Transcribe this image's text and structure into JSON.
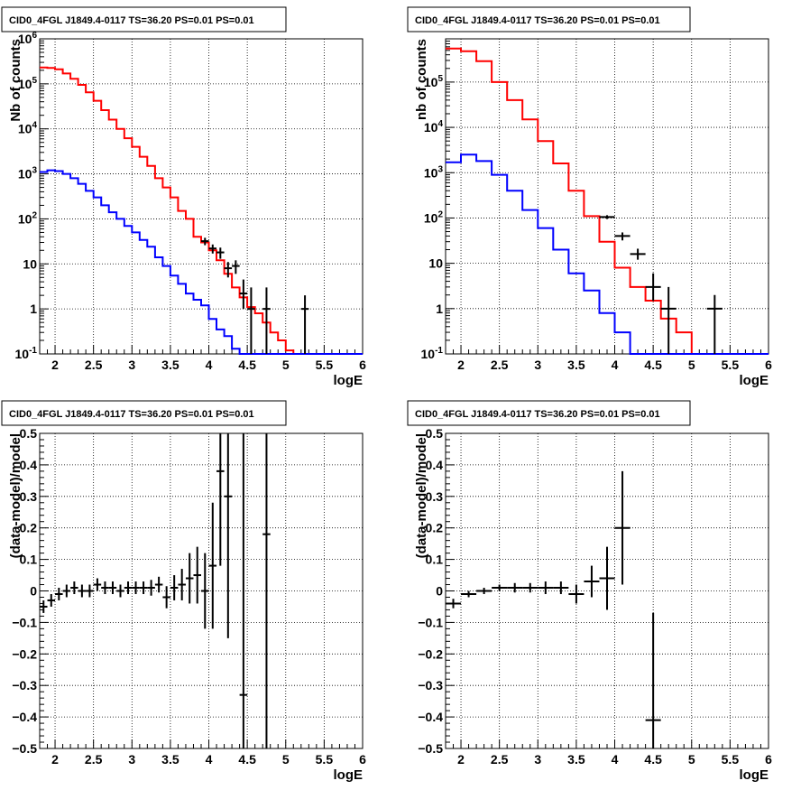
{
  "chart_data": [
    {
      "type": "step",
      "title": "CID0_4FGL J1849.4-0117 TS=36.20 PS=0.01 PS=0.01",
      "xlabel": "logE",
      "ylabel": "Nb of counts",
      "xlim": [
        1.8,
        6
      ],
      "ylim": [
        0.1,
        1000000
      ],
      "yscale": "log",
      "grid": true,
      "xticks": [
        "2",
        "2.5",
        "3",
        "3.5",
        "4",
        "4.5",
        "5",
        "5.5",
        "6"
      ],
      "yticks": [
        "10^-1",
        "1",
        "10",
        "10^2",
        "10^3",
        "10^4",
        "10^5",
        "10^6"
      ],
      "bin_edges": [
        1.8,
        1.9,
        2.0,
        2.1,
        2.2,
        2.3,
        2.4,
        2.5,
        2.6,
        2.7,
        2.8,
        2.9,
        3.0,
        3.1,
        3.2,
        3.3,
        3.4,
        3.5,
        3.6,
        3.7,
        3.8,
        3.9,
        4.0,
        4.1,
        4.2,
        4.3,
        4.4,
        4.5,
        4.6,
        4.7,
        4.8,
        4.9,
        5.0,
        5.1,
        5.2,
        5.3,
        5.4,
        5.5,
        5.6,
        5.7,
        5.8,
        5.9,
        6.0
      ],
      "series": [
        {
          "color": "#ff0000",
          "values": [
            230000,
            225000,
            210000,
            170000,
            130000,
            95000,
            65000,
            42000,
            26000,
            16000,
            10000,
            6200,
            4000,
            2400,
            1500,
            800,
            500,
            300,
            150,
            100,
            40,
            30,
            20,
            12,
            6,
            3,
            1.8,
            1.1,
            0.8,
            0.5,
            0.3,
            0.2,
            0.12,
            0.1,
            0.1,
            0.1,
            0.1,
            0.1,
            0.1,
            0.1,
            0.1,
            0.1
          ]
        },
        {
          "color": "#0000ff",
          "values": [
            1100,
            1200,
            1150,
            1000,
            800,
            600,
            420,
            300,
            200,
            140,
            100,
            70,
            50,
            34,
            24,
            14,
            9,
            5.5,
            3.6,
            2.2,
            1.6,
            1.2,
            0.6,
            0.35,
            0.25,
            0.13,
            0.1,
            0.1,
            0.1,
            0.1,
            0.1,
            0.1,
            0.1,
            0.1,
            0.1,
            0.1,
            0.1,
            0.1,
            0.1,
            0.1,
            0.1,
            0.1
          ]
        }
      ],
      "points": [
        {
          "x": 3.95,
          "y": 32,
          "xerr": 0.05,
          "ylo": 26,
          "yhi": 38
        },
        {
          "x": 4.05,
          "y": 22,
          "xerr": 0.05,
          "ylo": 17,
          "yhi": 27
        },
        {
          "x": 4.15,
          "y": 18,
          "xerr": 0.05,
          "ylo": 13,
          "yhi": 23
        },
        {
          "x": 4.25,
          "y": 8,
          "xerr": 0.05,
          "ylo": 5,
          "yhi": 11
        },
        {
          "x": 4.35,
          "y": 9,
          "xerr": 0.05,
          "ylo": 6,
          "yhi": 12
        },
        {
          "x": 4.45,
          "y": 2.2,
          "xerr": 0.05,
          "ylo": 1,
          "yhi": 4.5
        },
        {
          "x": 4.55,
          "y": 1,
          "xerr": 0.05,
          "ylo": 0.1,
          "yhi": 3
        },
        {
          "x": 4.75,
          "y": 1,
          "xerr": 0.05,
          "ylo": 0.1,
          "yhi": 3
        },
        {
          "x": 5.25,
          "y": 1,
          "xerr": 0.05,
          "ylo": 0.1,
          "yhi": 2
        }
      ]
    },
    {
      "type": "step",
      "title": "CID0_4FGL J1849.4-0117 TS=36.20 PS=0.01 PS=0.01",
      "xlabel": "logE",
      "ylabel": "nb of counts",
      "xlim": [
        1.8,
        6
      ],
      "ylim": [
        0.1,
        900000
      ],
      "yscale": "log",
      "grid": true,
      "xticks": [
        "2",
        "2.5",
        "3",
        "3.5",
        "4",
        "4.5",
        "5",
        "5.5",
        "6"
      ],
      "yticks": [
        "10^-1",
        "1",
        "10",
        "10^2",
        "10^3",
        "10^4",
        "10^5"
      ],
      "bin_edges": [
        1.8,
        2.0,
        2.2,
        2.4,
        2.6,
        2.8,
        3.0,
        3.2,
        3.4,
        3.6,
        3.8,
        4.0,
        4.2,
        4.4,
        4.6,
        4.8,
        5.0,
        5.2,
        5.4,
        5.6,
        5.8,
        6.0
      ],
      "series": [
        {
          "color": "#ff0000",
          "values": [
            550000,
            480000,
            290000,
            100000,
            40000,
            15000,
            5000,
            1600,
            400,
            110,
            30,
            8,
            3,
            1.5,
            0.6,
            0.3,
            0.1,
            0.1,
            0.1,
            0.1,
            0.1
          ]
        },
        {
          "color": "#0000ff",
          "values": [
            1700,
            2500,
            1800,
            900,
            400,
            150,
            60,
            20,
            6,
            2.5,
            0.8,
            0.3,
            0.1,
            0.1,
            0.1,
            0.1,
            0.1,
            0.1,
            0.1,
            0.1,
            0.1
          ]
        }
      ],
      "points": [
        {
          "x": 3.9,
          "y": 105,
          "xerr": 0.1,
          "ylo": 95,
          "yhi": 115
        },
        {
          "x": 4.1,
          "y": 40,
          "xerr": 0.1,
          "ylo": 32,
          "yhi": 48
        },
        {
          "x": 4.3,
          "y": 16,
          "xerr": 0.1,
          "ylo": 12,
          "yhi": 21
        },
        {
          "x": 4.5,
          "y": 3,
          "xerr": 0.1,
          "ylo": 1.5,
          "yhi": 6
        },
        {
          "x": 4.7,
          "y": 1,
          "xerr": 0.1,
          "ylo": 0.1,
          "yhi": 3
        },
        {
          "x": 5.3,
          "y": 1,
          "xerr": 0.1,
          "ylo": 0.1,
          "yhi": 2
        }
      ]
    },
    {
      "type": "scatter",
      "title": "CID0_4FGL J1849.4-0117 TS=36.20 PS=0.01 PS=0.01",
      "xlabel": "logE",
      "ylabel": "(data-model)/model",
      "xlim": [
        1.8,
        6
      ],
      "ylim": [
        -0.5,
        0.5
      ],
      "yscale": "linear",
      "grid": true,
      "xticks": [
        "2",
        "2.5",
        "3",
        "3.5",
        "4",
        "4.5",
        "5",
        "5.5",
        "6"
      ],
      "yticks": [
        "−0.5",
        "−0.4",
        "−0.3",
        "−0.2",
        "−0.1",
        "0",
        "0.1",
        "0.2",
        "0.3",
        "0.4",
        "0.5"
      ],
      "points": [
        {
          "x": 1.85,
          "y": -0.05,
          "xerr": 0.05,
          "err": 0.02
        },
        {
          "x": 1.95,
          "y": -0.03,
          "xerr": 0.05,
          "err": 0.02
        },
        {
          "x": 2.05,
          "y": -0.01,
          "xerr": 0.05,
          "err": 0.02
        },
        {
          "x": 2.15,
          "y": 0.0,
          "xerr": 0.05,
          "err": 0.02
        },
        {
          "x": 2.25,
          "y": 0.01,
          "xerr": 0.05,
          "err": 0.02
        },
        {
          "x": 2.35,
          "y": 0.0,
          "xerr": 0.05,
          "err": 0.02
        },
        {
          "x": 2.45,
          "y": 0.0,
          "xerr": 0.05,
          "err": 0.02
        },
        {
          "x": 2.55,
          "y": 0.02,
          "xerr": 0.05,
          "err": 0.02
        },
        {
          "x": 2.65,
          "y": 0.01,
          "xerr": 0.05,
          "err": 0.02
        },
        {
          "x": 2.75,
          "y": 0.01,
          "xerr": 0.05,
          "err": 0.02
        },
        {
          "x": 2.85,
          "y": 0.0,
          "xerr": 0.05,
          "err": 0.02
        },
        {
          "x": 2.95,
          "y": 0.01,
          "xerr": 0.05,
          "err": 0.02
        },
        {
          "x": 3.05,
          "y": 0.01,
          "xerr": 0.05,
          "err": 0.02
        },
        {
          "x": 3.15,
          "y": 0.01,
          "xerr": 0.05,
          "err": 0.02
        },
        {
          "x": 3.25,
          "y": 0.01,
          "xerr": 0.05,
          "err": 0.025
        },
        {
          "x": 3.35,
          "y": 0.02,
          "xerr": 0.05,
          "err": 0.025
        },
        {
          "x": 3.45,
          "y": -0.02,
          "xerr": 0.05,
          "err": 0.035
        },
        {
          "x": 3.55,
          "y": 0.01,
          "xerr": 0.05,
          "err": 0.04
        },
        {
          "x": 3.65,
          "y": 0.02,
          "xerr": 0.05,
          "err": 0.05
        },
        {
          "x": 3.75,
          "y": 0.04,
          "xerr": 0.05,
          "err": 0.08
        },
        {
          "x": 3.85,
          "y": 0.05,
          "xerr": 0.05,
          "err": 0.09
        },
        {
          "x": 3.95,
          "y": 0.0,
          "xerr": 0.05,
          "err": 0.12
        },
        {
          "x": 4.05,
          "y": 0.08,
          "xerr": 0.05,
          "err": 0.2
        },
        {
          "x": 4.15,
          "y": 0.38,
          "xerr": 0.05,
          "err": 0.3
        },
        {
          "x": 4.25,
          "y": 0.3,
          "xerr": 0.05,
          "err": 0.45
        },
        {
          "x": 4.45,
          "y": -0.33,
          "xerr": 0.05,
          "err": 0.9
        },
        {
          "x": 4.75,
          "y": 0.18,
          "xerr": 0.05,
          "err": 1.2
        }
      ]
    },
    {
      "type": "scatter",
      "title": "CID0_4FGL J1849.4-0117 TS=36.20 PS=0.01 PS=0.01",
      "xlabel": "logE",
      "ylabel": "(data-model)/model",
      "xlim": [
        1.8,
        6
      ],
      "ylim": [
        -0.5,
        0.5
      ],
      "yscale": "linear",
      "grid": true,
      "xticks": [
        "2",
        "2.5",
        "3",
        "3.5",
        "4",
        "4.5",
        "5",
        "5.5",
        "6"
      ],
      "yticks": [
        "−0.5",
        "−0.4",
        "−0.3",
        "−0.2",
        "−0.1",
        "0",
        "0.1",
        "0.2",
        "0.3",
        "0.4",
        "0.5"
      ],
      "points": [
        {
          "x": 1.9,
          "y": -0.04,
          "xerr": 0.1,
          "err": 0.015
        },
        {
          "x": 2.1,
          "y": -0.01,
          "xerr": 0.1,
          "err": 0.01
        },
        {
          "x": 2.3,
          "y": 0.0,
          "xerr": 0.1,
          "err": 0.01
        },
        {
          "x": 2.5,
          "y": 0.01,
          "xerr": 0.1,
          "err": 0.01
        },
        {
          "x": 2.7,
          "y": 0.01,
          "xerr": 0.1,
          "err": 0.015
        },
        {
          "x": 2.9,
          "y": 0.01,
          "xerr": 0.1,
          "err": 0.015
        },
        {
          "x": 3.1,
          "y": 0.01,
          "xerr": 0.1,
          "err": 0.02
        },
        {
          "x": 3.3,
          "y": 0.01,
          "xerr": 0.1,
          "err": 0.02
        },
        {
          "x": 3.5,
          "y": -0.01,
          "xerr": 0.1,
          "err": 0.03
        },
        {
          "x": 3.7,
          "y": 0.03,
          "xerr": 0.1,
          "err": 0.05
        },
        {
          "x": 3.9,
          "y": 0.04,
          "xerr": 0.1,
          "err": 0.1
        },
        {
          "x": 4.1,
          "y": 0.2,
          "xerr": 0.1,
          "err": 0.18
        },
        {
          "x": 4.5,
          "y": -0.41,
          "xerr": 0.1,
          "err": 0.34
        }
      ]
    }
  ]
}
